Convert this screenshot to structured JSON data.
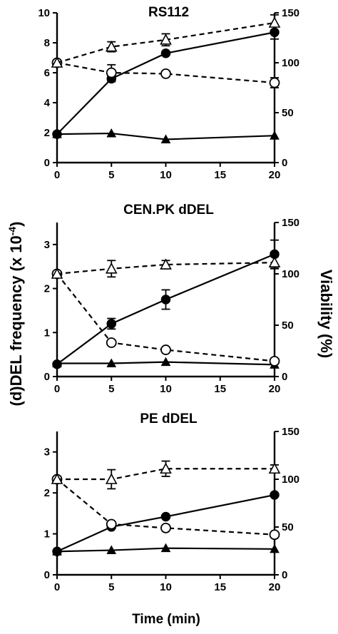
{
  "figure": {
    "ylabel_left": "(d)DEL frequency (x 10",
    "ylabel_left_exp": "-4",
    "ylabel_left_close": ")",
    "ylabel_right": "Viability (%)",
    "xlabel": "Time (min)"
  },
  "chart_data": [
    {
      "type": "line",
      "title": "RS112",
      "x": [
        0,
        5,
        10,
        20
      ],
      "xlim": [
        0,
        20
      ],
      "xticks": [
        "0",
        "5",
        "10",
        "15",
        "20"
      ],
      "ylim": [
        0,
        10
      ],
      "yticks": [
        "0",
        "2",
        "4",
        "6",
        "8",
        "10"
      ],
      "y2lim": [
        0,
        150
      ],
      "y2ticks": [
        "0",
        "50",
        "100",
        "150"
      ],
      "series": [
        {
          "axis": "left",
          "marker": "filled-circle",
          "line": "solid",
          "values": [
            1.9,
            5.6,
            7.3,
            8.7
          ],
          "err": [
            0,
            0.2,
            0,
            0.45
          ]
        },
        {
          "axis": "left",
          "marker": "filled-triangle",
          "line": "solid",
          "values": [
            1.9,
            1.95,
            1.55,
            1.8
          ],
          "err": [
            0,
            0,
            0,
            0
          ]
        },
        {
          "axis": "right",
          "marker": "open-circle",
          "line": "dashed",
          "values": [
            100,
            90,
            89,
            80
          ],
          "err": [
            0,
            8,
            0,
            5
          ]
        },
        {
          "axis": "right",
          "marker": "open-triangle",
          "line": "dashed",
          "values": [
            100,
            116,
            123,
            140
          ],
          "err": [
            0,
            5,
            6,
            8
          ]
        }
      ]
    },
    {
      "type": "line",
      "title": "CEN.PK dDEL",
      "x": [
        0,
        5,
        10,
        20
      ],
      "xlim": [
        0,
        20
      ],
      "xticks": [
        "0",
        "5",
        "10",
        "15",
        "20"
      ],
      "ylim": [
        0,
        3.5
      ],
      "yticks": [
        "0",
        "1",
        "2",
        "3"
      ],
      "y2lim": [
        0,
        150
      ],
      "y2ticks": [
        "0",
        "50",
        "100",
        "150"
      ],
      "series": [
        {
          "axis": "left",
          "marker": "filled-circle",
          "line": "solid",
          "values": [
            0.28,
            1.2,
            1.75,
            2.78
          ],
          "err": [
            0,
            0.12,
            0.22,
            0.32
          ]
        },
        {
          "axis": "left",
          "marker": "filled-triangle",
          "line": "solid",
          "values": [
            0.3,
            0.3,
            0.33,
            0.27
          ],
          "err": [
            0,
            0,
            0,
            0
          ]
        },
        {
          "axis": "right",
          "marker": "open-circle",
          "line": "dashed",
          "values": [
            100,
            33,
            26,
            15
          ],
          "err": [
            0,
            0,
            0,
            0
          ]
        },
        {
          "axis": "right",
          "marker": "open-triangle",
          "line": "dashed",
          "values": [
            100,
            105,
            109,
            111
          ],
          "err": [
            0,
            8,
            4,
            6
          ]
        }
      ]
    },
    {
      "type": "line",
      "title": "PE dDEL",
      "x": [
        0,
        5,
        10,
        20
      ],
      "xlim": [
        0,
        20
      ],
      "xticks": [
        "0",
        "5",
        "10",
        "15",
        "20"
      ],
      "ylim": [
        0,
        3.5
      ],
      "yticks": [
        "0",
        "1",
        "2",
        "3"
      ],
      "y2lim": [
        0,
        150
      ],
      "y2ticks": [
        "0",
        "50",
        "100",
        "150"
      ],
      "series": [
        {
          "axis": "left",
          "marker": "filled-circle",
          "line": "solid",
          "values": [
            0.57,
            1.17,
            1.42,
            1.95
          ],
          "err": [
            0,
            0,
            0,
            0
          ]
        },
        {
          "axis": "left",
          "marker": "filled-triangle",
          "line": "solid",
          "values": [
            0.57,
            0.6,
            0.65,
            0.63
          ],
          "err": [
            0,
            0,
            0,
            0
          ]
        },
        {
          "axis": "right",
          "marker": "open-circle",
          "line": "dashed",
          "values": [
            100,
            53,
            49,
            42
          ],
          "err": [
            0,
            0,
            0,
            0
          ]
        },
        {
          "axis": "right",
          "marker": "open-triangle",
          "line": "dashed",
          "values": [
            100,
            100,
            111,
            111
          ],
          "err": [
            0,
            10,
            8,
            4
          ]
        }
      ]
    }
  ]
}
